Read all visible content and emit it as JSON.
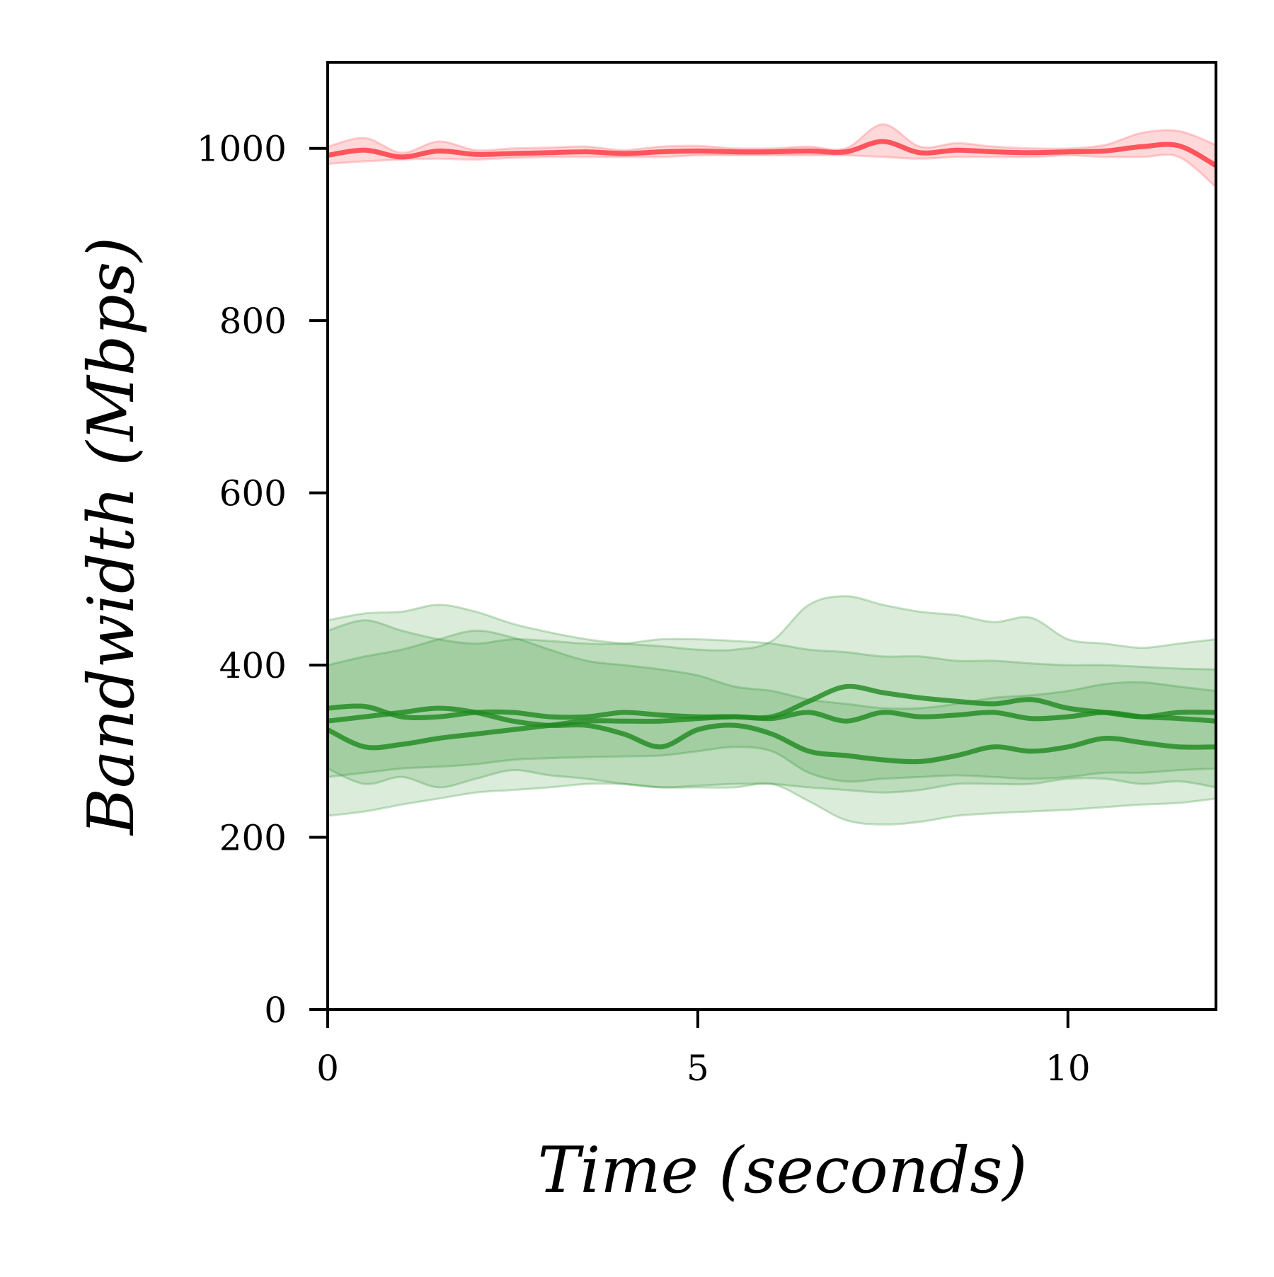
{
  "colors": {
    "red": "#ff4d55",
    "green": "#1f8a1f"
  },
  "chart_data": {
    "type": "line",
    "title": "",
    "xlabel": "Time (seconds)",
    "ylabel": "Bandwidth (Mbps)",
    "xlim": [
      0,
      12
    ],
    "ylim": [
      0,
      1100
    ],
    "xticks": [
      0,
      5,
      10
    ],
    "yticks": [
      0,
      200,
      400,
      600,
      800,
      1000
    ],
    "grid": false,
    "x": [
      0,
      0.5,
      1,
      1.5,
      2,
      2.5,
      3,
      3.5,
      4,
      4.5,
      5,
      5.5,
      6,
      6.5,
      7,
      7.5,
      8,
      8.5,
      9,
      9.5,
      10,
      10.5,
      11,
      11.5,
      12
    ],
    "series": [
      {
        "color": "red",
        "values": [
          992,
          998,
          990,
          997,
          993,
          994,
          995,
          996,
          994,
          996,
          997,
          996,
          996,
          997,
          996,
          1008,
          995,
          998,
          996,
          995,
          996,
          997,
          1002,
          1003,
          980
        ],
        "lower": [
          982,
          985,
          987,
          988,
          987,
          989,
          990,
          990,
          990,
          990,
          992,
          992,
          992,
          992,
          992,
          990,
          988,
          990,
          990,
          990,
          992,
          990,
          990,
          990,
          955
        ],
        "upper": [
          1002,
          1012,
          995,
          1008,
          998,
          1000,
          1001,
          1002,
          998,
          1002,
          1003,
          1000,
          1000,
          1002,
          1000,
          1028,
          1002,
          1006,
          1002,
          1000,
          1000,
          1004,
          1018,
          1020,
          1004
        ]
      },
      {
        "color": "green",
        "values": [
          350,
          352,
          340,
          340,
          345,
          345,
          340,
          340,
          345,
          342,
          340,
          340,
          338,
          345,
          335,
          345,
          340,
          342,
          345,
          338,
          340,
          345,
          340,
          338,
          335
        ],
        "lower": [
          270,
          275,
          280,
          282,
          285,
          290,
          292,
          293,
          294,
          295,
          300,
          305,
          300,
          275,
          265,
          268,
          270,
          272,
          270,
          268,
          270,
          275,
          275,
          278,
          280
        ],
        "upper": [
          440,
          452,
          440,
          430,
          425,
          430,
          428,
          425,
          425,
          430,
          430,
          428,
          425,
          418,
          415,
          410,
          410,
          405,
          405,
          402,
          400,
          400,
          398,
          396,
          395
        ]
      },
      {
        "color": "green",
        "values": [
          335,
          340,
          345,
          350,
          345,
          335,
          330,
          330,
          320,
          305,
          325,
          330,
          320,
          300,
          295,
          290,
          288,
          295,
          305,
          300,
          305,
          315,
          310,
          305,
          305
        ],
        "lower": [
          280,
          262,
          270,
          258,
          268,
          278,
          272,
          268,
          262,
          258,
          260,
          262,
          262,
          258,
          255,
          252,
          255,
          262,
          262,
          262,
          268,
          268,
          262,
          265,
          258
        ],
        "upper": [
          400,
          410,
          418,
          430,
          440,
          432,
          418,
          405,
          400,
          395,
          388,
          375,
          370,
          360,
          355,
          350,
          350,
          355,
          362,
          365,
          370,
          378,
          380,
          375,
          370
        ]
      },
      {
        "color": "green",
        "values": [
          325,
          305,
          308,
          315,
          320,
          325,
          330,
          335,
          335,
          335,
          338,
          340,
          340,
          358,
          375,
          368,
          362,
          358,
          355,
          360,
          350,
          345,
          340,
          345,
          345
        ],
        "lower": [
          225,
          230,
          238,
          245,
          252,
          255,
          258,
          262,
          262,
          258,
          258,
          258,
          262,
          242,
          220,
          215,
          218,
          225,
          228,
          230,
          232,
          235,
          238,
          240,
          245
        ],
        "upper": [
          452,
          460,
          462,
          470,
          462,
          448,
          438,
          430,
          425,
          422,
          418,
          418,
          428,
          470,
          480,
          470,
          462,
          458,
          450,
          455,
          430,
          425,
          420,
          425,
          430
        ]
      }
    ]
  }
}
